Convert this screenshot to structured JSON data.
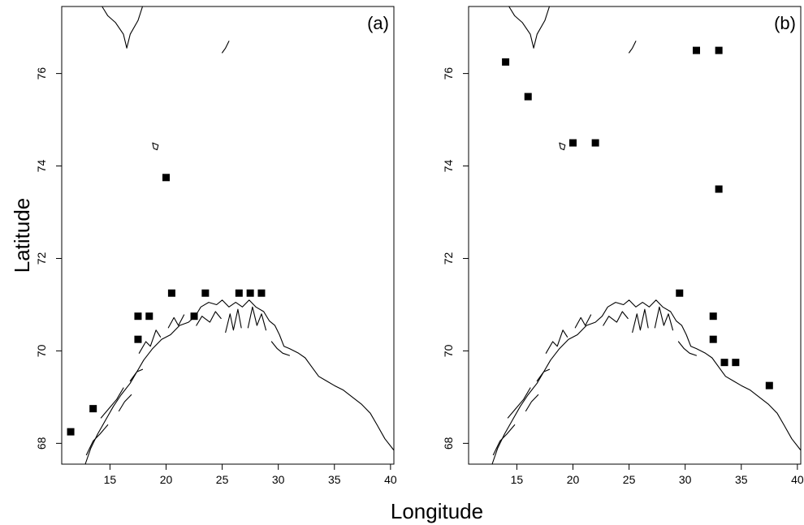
{
  "figure": {
    "xlabel": "Longitude",
    "ylabel": "Latitude",
    "marker_color": "#000000"
  },
  "chart_data": [
    {
      "type": "scatter",
      "panel_label": "(a)",
      "xlim": [
        10.7,
        40.3
      ],
      "ylim": [
        67.55,
        77.45
      ],
      "x_ticks": [
        15,
        20,
        25,
        30,
        35,
        40
      ],
      "y_ticks": [
        68,
        70,
        72,
        74,
        76
      ],
      "x_tick_labels": [
        "15",
        "20",
        "25",
        "30",
        "35",
        "40"
      ],
      "y_tick_labels": [
        "68",
        "70",
        "72",
        "74",
        "76"
      ],
      "grid": false,
      "points": [
        {
          "x": 11.5,
          "y": 68.25
        },
        {
          "x": 13.5,
          "y": 68.75
        },
        {
          "x": 17.5,
          "y": 70.25
        },
        {
          "x": 17.5,
          "y": 70.75
        },
        {
          "x": 18.5,
          "y": 70.75
        },
        {
          "x": 20.0,
          "y": 73.75
        },
        {
          "x": 20.5,
          "y": 71.25
        },
        {
          "x": 22.5,
          "y": 70.75
        },
        {
          "x": 23.5,
          "y": 71.25
        },
        {
          "x": 26.5,
          "y": 71.25
        },
        {
          "x": 27.5,
          "y": 71.25
        },
        {
          "x": 28.5,
          "y": 71.25
        }
      ]
    },
    {
      "type": "scatter",
      "panel_label": "(b)",
      "xlim": [
        10.7,
        40.3
      ],
      "ylim": [
        67.55,
        77.45
      ],
      "x_ticks": [
        15,
        20,
        25,
        30,
        35,
        40
      ],
      "y_ticks": [
        68,
        70,
        72,
        74,
        76
      ],
      "x_tick_labels": [
        "15",
        "20",
        "25",
        "30",
        "35",
        "40"
      ],
      "y_tick_labels": [
        "68",
        "70",
        "72",
        "74",
        "76"
      ],
      "grid": false,
      "points": [
        {
          "x": 14.0,
          "y": 76.25
        },
        {
          "x": 16.0,
          "y": 75.5
        },
        {
          "x": 20.0,
          "y": 74.5
        },
        {
          "x": 22.0,
          "y": 74.5
        },
        {
          "x": 31.0,
          "y": 76.5
        },
        {
          "x": 33.0,
          "y": 76.5
        },
        {
          "x": 33.0,
          "y": 73.5
        },
        {
          "x": 29.5,
          "y": 71.25
        },
        {
          "x": 32.5,
          "y": 70.75
        },
        {
          "x": 32.5,
          "y": 70.25
        },
        {
          "x": 33.5,
          "y": 69.75
        },
        {
          "x": 34.5,
          "y": 69.75
        },
        {
          "x": 37.5,
          "y": 69.25
        }
      ]
    }
  ]
}
